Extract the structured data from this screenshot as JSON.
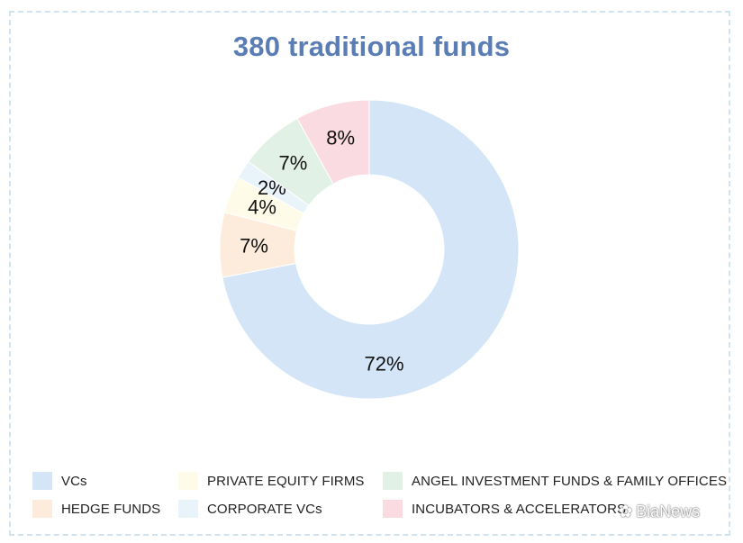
{
  "chart_data": {
    "type": "pie",
    "title": "380 traditional funds",
    "slices": [
      {
        "label": "VCs",
        "value": 72,
        "label_text": "72%",
        "color": "#d3e5f6"
      },
      {
        "label": "HEDGE FUNDS",
        "value": 7,
        "label_text": "7%",
        "color": "#fdecdc"
      },
      {
        "label": "PRIVATE EQUITY FIRMS",
        "value": 4,
        "label_text": "4%",
        "color": "#fefbe9"
      },
      {
        "label": "CORPORATE VCs",
        "value": 2,
        "label_text": "2%",
        "color": "#e9f3fa"
      },
      {
        "label": "ANGEL INVESTMENT FUNDS & FAMILY OFFICES",
        "value": 7,
        "label_text": "7%",
        "color": "#e1f1e6"
      },
      {
        "label": "INCUBATORS & ACCELERATORS",
        "value": 8,
        "label_text": "8%",
        "color": "#fadbe1"
      }
    ],
    "donut": true,
    "legend_position": "bottom"
  },
  "watermark": {
    "icon": "wechat-icon",
    "text": "BiaNews"
  }
}
